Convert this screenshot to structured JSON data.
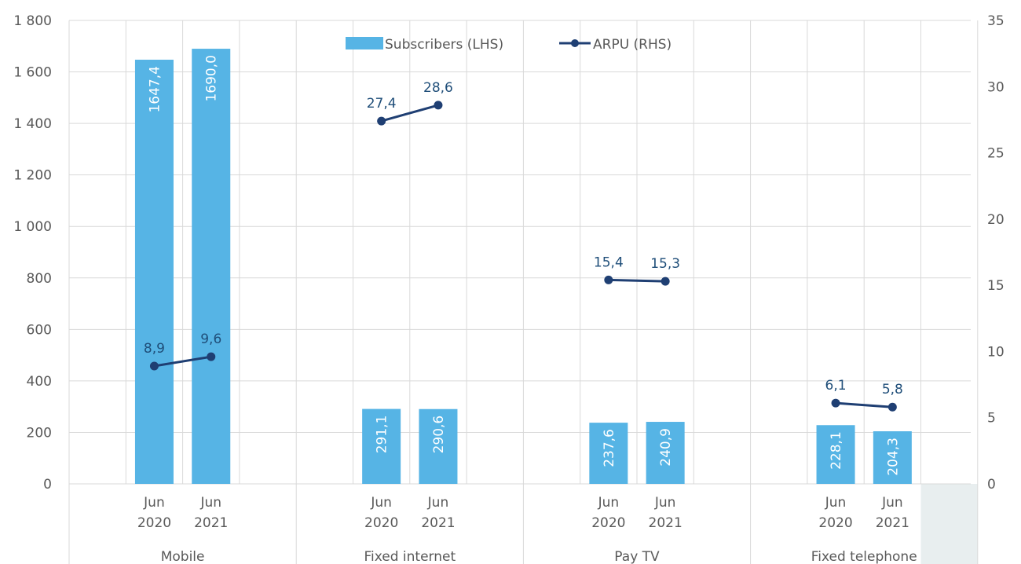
{
  "chart_data": {
    "type": "bar",
    "groups": [
      "Mobile",
      "Fixed internet",
      "Pay TV",
      "Fixed telephone"
    ],
    "periods": [
      "Jun\n2020",
      "Jun\n2021"
    ],
    "series": [
      {
        "name": "Subscribers (LHS)",
        "kind": "bar",
        "axis": "left",
        "color": "#56b4e5",
        "values": [
          [
            1647.4,
            1690.0
          ],
          [
            291.1,
            290.6
          ],
          [
            237.6,
            240.9
          ],
          [
            228.1,
            204.3
          ]
        ],
        "labels": [
          [
            "1647,4",
            "1690,0"
          ],
          [
            "291,1",
            "290,6"
          ],
          [
            "237,6",
            "240,9"
          ],
          [
            "228,1",
            "204,3"
          ]
        ]
      },
      {
        "name": "ARPU (RHS)",
        "kind": "line",
        "axis": "right",
        "color": "#1f3f73",
        "values": [
          [
            8.9,
            9.6
          ],
          [
            27.4,
            28.6
          ],
          [
            15.4,
            15.3
          ],
          [
            6.1,
            5.8
          ]
        ],
        "labels": [
          [
            "8,9",
            "9,6"
          ],
          [
            "27,4",
            "28,6"
          ],
          [
            "15,4",
            "15,3"
          ],
          [
            "6,1",
            "5,8"
          ]
        ]
      }
    ],
    "y_left": {
      "min": 0,
      "max": 1800,
      "ticks": [
        0,
        200,
        400,
        600,
        800,
        1000,
        1200,
        1400,
        1600,
        1800
      ],
      "tick_labels": [
        "0",
        "200",
        "400",
        "600",
        "800",
        "1 000",
        "1 200",
        "1 400",
        "1 600",
        "1 800"
      ]
    },
    "y_right": {
      "min": 0,
      "max": 35,
      "ticks": [
        0,
        5,
        10,
        15,
        20,
        25,
        30,
        35
      ],
      "tick_labels": [
        "0",
        "5",
        "10",
        "15",
        "20",
        "25",
        "30",
        "35"
      ]
    },
    "grid": true,
    "legend": "top-center"
  }
}
